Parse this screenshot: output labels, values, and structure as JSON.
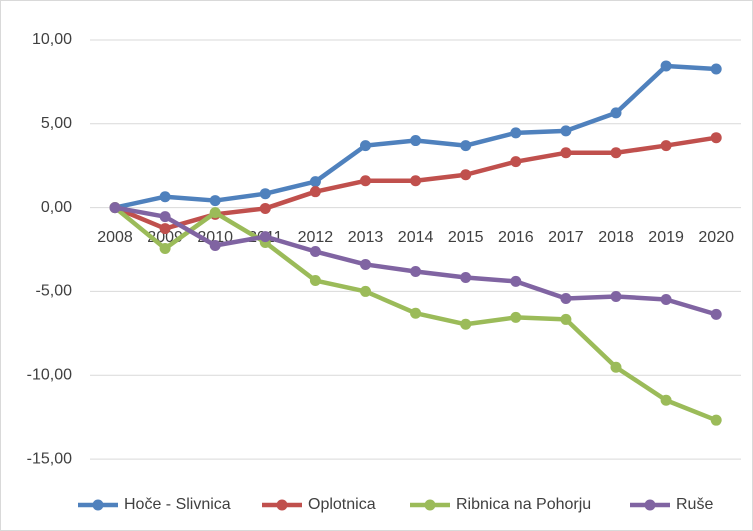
{
  "chart_data": {
    "type": "line",
    "categories": [
      "2008",
      "2009",
      "2010",
      "2011",
      "2012",
      "2013",
      "2014",
      "2015",
      "2016",
      "2017",
      "2018",
      "2019",
      "2020"
    ],
    "series": [
      {
        "name": "Hoče - Slivnica",
        "color": "#4f81bd",
        "values": [
          0,
          0.65,
          0.42,
          0.83,
          1.55,
          3.7,
          4.0,
          3.7,
          4.46,
          4.58,
          5.65,
          8.45,
          8.27
        ]
      },
      {
        "name": "Oplotnica",
        "color": "#c0504d",
        "values": [
          0,
          -1.25,
          -0.4,
          -0.05,
          0.95,
          1.6,
          1.6,
          1.96,
          2.74,
          3.27,
          3.27,
          3.7,
          4.17
        ]
      },
      {
        "name": "Ribnica na Pohorju",
        "color": "#9bbb59",
        "values": [
          0,
          -2.44,
          -0.3,
          -2.08,
          -4.35,
          -5.0,
          -6.3,
          -6.96,
          -6.55,
          -6.67,
          -9.52,
          -11.49,
          -12.68
        ]
      },
      {
        "name": "Ruše",
        "color": "#8064a2",
        "values": [
          0,
          -0.54,
          -2.26,
          -1.73,
          -2.62,
          -3.39,
          -3.81,
          -4.17,
          -4.4,
          -5.42,
          -5.3,
          -5.48,
          -6.37
        ]
      }
    ],
    "ylim": [
      -17,
      11
    ],
    "yticks": [
      {
        "value": -15,
        "label": "-15,00"
      },
      {
        "value": -10,
        "label": "-10,00"
      },
      {
        "value": -5,
        "label": "-5,00"
      },
      {
        "value": 0,
        "label": "0,00"
      },
      {
        "value": 5,
        "label": "5,00"
      },
      {
        "value": 10,
        "label": "10,00"
      }
    ],
    "grid": true,
    "legend": "bottom"
  }
}
